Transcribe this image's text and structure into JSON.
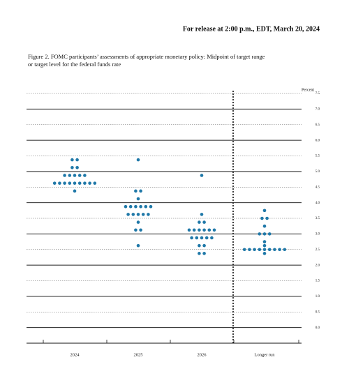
{
  "header": "For release at 2:00 p.m., EDT, March 20, 2024",
  "chart_data": {
    "type": "dot",
    "title": "Figure 2.  FOMC participants’ assessments of appropriate monetary policy:  Midpoint of target range or target level for the federal funds rate",
    "y_label": "Percent",
    "categories": [
      "2024",
      "2025",
      "2026",
      "Longer run"
    ],
    "values": [
      [
        5.375,
        5.375,
        5.125,
        5.125,
        4.875,
        4.875,
        4.875,
        4.875,
        4.875,
        4.625,
        4.625,
        4.625,
        4.625,
        4.625,
        4.625,
        4.625,
        4.625,
        4.625,
        4.375
      ],
      [
        5.375,
        4.375,
        4.375,
        4.125,
        3.875,
        3.875,
        3.875,
        3.875,
        3.875,
        3.875,
        3.625,
        3.625,
        3.625,
        3.625,
        3.625,
        3.375,
        3.125,
        3.125,
        2.625
      ],
      [
        4.875,
        3.625,
        3.375,
        3.375,
        3.125,
        3.125,
        3.125,
        3.125,
        3.125,
        3.125,
        2.875,
        2.875,
        2.875,
        2.875,
        2.875,
        2.625,
        2.625,
        2.375,
        2.375
      ],
      [
        3.75,
        3.5,
        3.5,
        3.25,
        3.0,
        3.0,
        3.0,
        2.75,
        2.625,
        2.5,
        2.5,
        2.5,
        2.5,
        2.5,
        2.5,
        2.5,
        2.5,
        2.5,
        2.375
      ]
    ],
    "color": "#1f78a8",
    "ylim": [
      -0.5,
      7.5
    ],
    "yticks": [
      {
        "value": 0,
        "label": "0.0"
      },
      0.5,
      {
        "value": 1,
        "label": "1.0"
      },
      1.5,
      {
        "value": 2,
        "label": "2.0"
      },
      2.5,
      {
        "value": 3,
        "label": "3.0"
      },
      3.5,
      {
        "value": 4,
        "label": "4.0"
      },
      4.5,
      {
        "value": 5,
        "label": "5.0"
      },
      5.5,
      {
        "value": 6,
        "label": "6.0"
      },
      6.5,
      {
        "value": 7,
        "label": "7.0"
      },
      7.5
    ],
    "grid": true
  }
}
